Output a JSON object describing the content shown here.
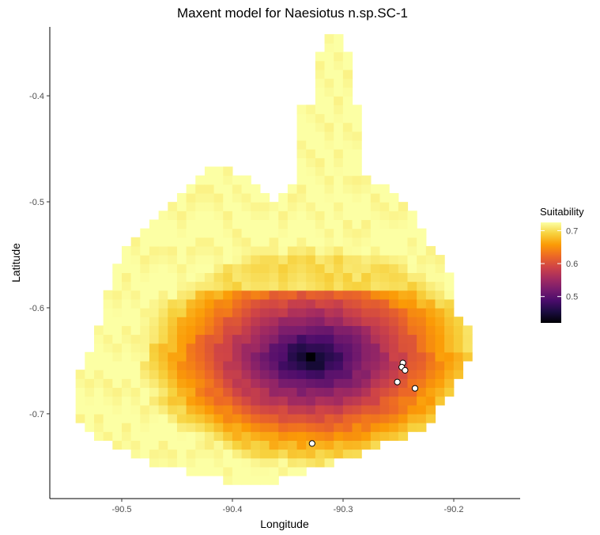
{
  "chart_data": {
    "type": "heatmap",
    "title": "Maxent model for Naesiotus n.sp.SC-1",
    "xlabel": "Longitude",
    "ylabel": "Latitude",
    "xlim": [
      -90.565,
      -90.14
    ],
    "ylim": [
      -0.78,
      -0.335
    ],
    "x_ticks": [
      -90.5,
      -90.4,
      -90.3,
      -90.2
    ],
    "x_tick_labels": [
      "-90.5",
      "-90.4",
      "-90.3",
      "-90.2"
    ],
    "y_ticks": [
      -0.4,
      -0.5,
      -0.6,
      -0.7
    ],
    "y_tick_labels": [
      "-0.4",
      "-0.5",
      "-0.6",
      "-0.7"
    ],
    "grid": false,
    "cell_size_deg": 0.00833,
    "color_scale": {
      "name": "inferno",
      "range": [
        0.42,
        0.725
      ],
      "stops": [
        "#000004",
        "#1b0c41",
        "#4a0c6b",
        "#781c6d",
        "#a52c60",
        "#cf4446",
        "#ed6925",
        "#fb9b06",
        "#f7d13d",
        "#fcffa4"
      ]
    },
    "suitability_surface": {
      "peak": {
        "x": -90.328,
        "y": -0.647,
        "value": 0.42
      },
      "edge_value": 0.725
    },
    "occurrence_points": [
      {
        "x": -90.246,
        "y": -0.652
      },
      {
        "x": -90.247,
        "y": -0.656
      },
      {
        "x": -90.244,
        "y": -0.659
      },
      {
        "x": -90.251,
        "y": -0.67
      },
      {
        "x": -90.235,
        "y": -0.676
      },
      {
        "x": -90.328,
        "y": -0.728
      }
    ],
    "legend": {
      "title": "Suitability",
      "position": "right",
      "ticks": [
        0.7,
        0.6,
        0.5
      ],
      "tick_labels": [
        "0.7",
        "0.6",
        "0.5"
      ]
    }
  },
  "colors": {
    "point_fill": "#ffffff",
    "point_stroke": "#000000",
    "axis_line": "#000000",
    "tick_text": "#4d4d4d"
  }
}
